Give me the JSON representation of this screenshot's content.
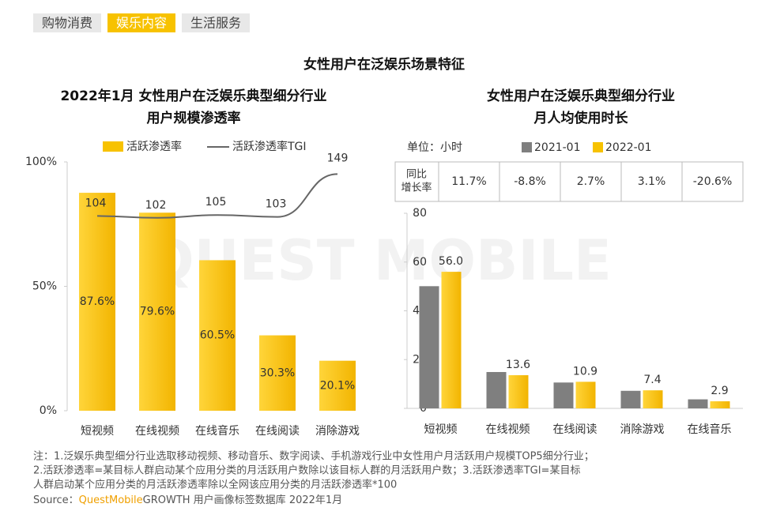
{
  "tabs": [
    "购物消费",
    "娱乐内容",
    "生活服务"
  ],
  "active_tab": 1,
  "title": "女性用户在泛娱乐场景特征",
  "watermark": "QUEST MOBILE",
  "chart_data": [
    {
      "type": "combo",
      "title_lines": [
        "2022年1月 女性用户在泛娱乐典型细分行业",
        "用户规模渗透率"
      ],
      "categories": [
        "短视频",
        "在线视频",
        "在线音乐",
        "在线阅读",
        "消除游戏"
      ],
      "series": [
        {
          "name": "活跃渗透率",
          "type": "bar",
          "color": "#f7c200",
          "values": [
            87.6,
            79.6,
            60.5,
            30.3,
            20.1
          ],
          "value_labels": [
            "87.6%",
            "79.6%",
            "60.5%",
            "30.3%",
            "20.1%"
          ]
        },
        {
          "name": "活跃渗透率TGI",
          "type": "line",
          "axis": "y2",
          "color": "#666666",
          "values": [
            104,
            102,
            105,
            103,
            149
          ]
        }
      ],
      "ylim": [
        0,
        100
      ],
      "yticks": [
        {
          "value": 0,
          "label": "0%"
        },
        {
          "value": 50,
          "label": "50%"
        },
        {
          "value": 100,
          "label": "100%"
        }
      ],
      "y2lim": [
        -105,
        162
      ]
    },
    {
      "type": "bar",
      "title_lines": [
        "女性用户在泛娱乐典型细分行业",
        "月人均使用时长"
      ],
      "unit": "单位：小时",
      "categories": [
        "短视频",
        "在线视频",
        "在线阅读",
        "消除游戏",
        "在线音乐"
      ],
      "series": [
        {
          "name": "2021-01",
          "color": "#7f7f7f",
          "values": [
            50.1,
            14.9,
            10.6,
            7.2,
            3.7
          ]
        },
        {
          "name": "2022-01",
          "color": "#f7c200",
          "values": [
            56.0,
            13.6,
            10.9,
            7.4,
            2.9
          ],
          "value_labels": [
            "56.0",
            "13.6",
            "10.9",
            "7.4",
            "2.9"
          ]
        }
      ],
      "growth_table": {
        "label_lines": [
          "同比",
          "增长率"
        ],
        "values": [
          "11.7%",
          "-8.8%",
          "2.7%",
          "3.1%",
          "-20.6%"
        ]
      },
      "ylim": [
        0,
        80
      ],
      "yticks": [
        0,
        20,
        40,
        60,
        80
      ]
    }
  ],
  "notes": [
    "注：1.泛娱乐典型细分行业选取移动视频、移动音乐、数字阅读、手机游戏行业中女性用户月活跃用户规模TOP5细分行业；",
    "2.活跃渗透率=某目标人群启动某个应用分类的月活跃用户数除以该目标人群的月活跃用户数；3.活跃渗透率TGI=某目标",
    "人群启动某个应用分类的月活跃渗透率除以全网该应用分类的月活跃渗透率*100"
  ],
  "source": {
    "label": "Source：",
    "brand": "QuestMobile",
    "text": "GROWTH 用户画像标签数据库 2022年1月"
  }
}
